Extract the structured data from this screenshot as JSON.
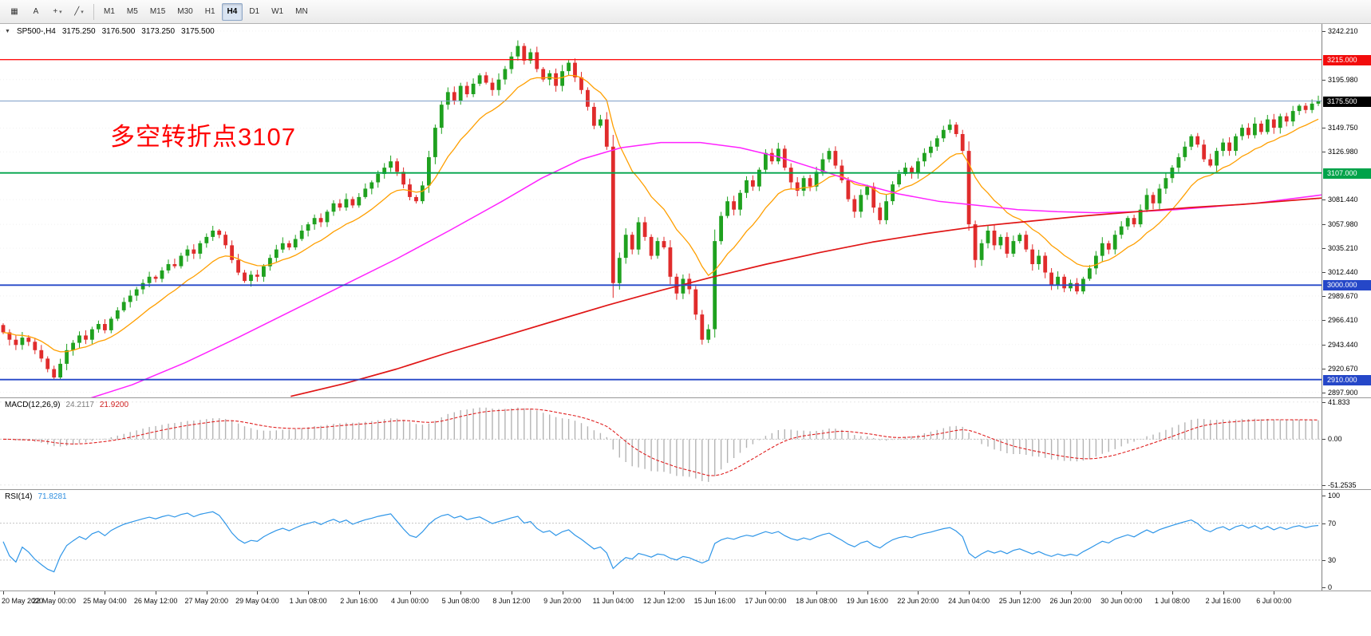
{
  "toolbar": {
    "icons": [
      {
        "name": "chart-window-icon",
        "glyph": "▦",
        "caret": false
      },
      {
        "name": "text-tool-icon",
        "glyph": "A",
        "caret": false
      },
      {
        "name": "cursor-tool-icon",
        "glyph": "+",
        "caret": true
      },
      {
        "name": "trendline-tool-icon",
        "glyph": "╱",
        "caret": true
      }
    ],
    "timeframes": [
      "M1",
      "M5",
      "M15",
      "M30",
      "H1",
      "H4",
      "D1",
      "W1",
      "MN"
    ],
    "active_timeframe": "H4"
  },
  "symbol_header": {
    "symbol": "SP500-,H4",
    "open": "3175.250",
    "high": "3176.500",
    "low": "3173.250",
    "close": "3175.500"
  },
  "annotation": {
    "text": "多空转折点3107",
    "color": "#ff0000",
    "value": 3107
  },
  "chart_data": {
    "type": "candlestick",
    "title": "SP500-,H4",
    "symbol": "SP500-",
    "timeframe": "H4",
    "xlabel": "",
    "ylabel": "price",
    "ylim": [
      2893,
      3249
    ],
    "first_open": 2962,
    "closes": [
      2955,
      2948,
      2943,
      2950,
      2946,
      2938,
      2930,
      2920,
      2912,
      2925,
      2938,
      2945,
      2952,
      2948,
      2958,
      2963,
      2957,
      2968,
      2976,
      2984,
      2990,
      2996,
      3002,
      3008,
      3006,
      3014,
      3020,
      3018,
      3028,
      3034,
      3030,
      3040,
      3046,
      3052,
      3048,
      3038,
      3024,
      3012,
      3004,
      3010,
      3008,
      3018,
      3026,
      3034,
      3040,
      3036,
      3044,
      3052,
      3058,
      3064,
      3060,
      3070,
      3078,
      3074,
      3082,
      3076,
      3084,
      3092,
      3098,
      3106,
      3112,
      3118,
      3108,
      3096,
      3084,
      3080,
      3095,
      3122,
      3150,
      3172,
      3184,
      3176,
      3190,
      3182,
      3192,
      3200,
      3193,
      3186,
      3196,
      3206,
      3218,
      3228,
      3214,
      3222,
      3206,
      3196,
      3202,
      3190,
      3204,
      3212,
      3198,
      3186,
      3170,
      3152,
      3158,
      3132,
      3002,
      3026,
      3048,
      3034,
      3060,
      3046,
      3028,
      3042,
      3036,
      3008,
      2992,
      3006,
      2996,
      2972,
      2948,
      2958,
      3042,
      3066,
      3080,
      3072,
      3088,
      3100,
      3094,
      3110,
      3126,
      3118,
      3130,
      3112,
      3098,
      3090,
      3102,
      3094,
      3108,
      3120,
      3128,
      3114,
      3100,
      3082,
      3070,
      3086,
      3094,
      3074,
      3062,
      3080,
      3096,
      3106,
      3112,
      3107,
      3118,
      3126,
      3132,
      3140,
      3148,
      3153,
      3144,
      3128,
      3058,
      3024,
      3040,
      3052,
      3038,
      3046,
      3030,
      3042,
      3048,
      3034,
      3020,
      3028,
      3012,
      3000,
      3008,
      2997,
      3002,
      2994,
      3006,
      3016,
      3028,
      3040,
      3034,
      3048,
      3056,
      3064,
      3058,
      3072,
      3086,
      3078,
      3092,
      3102,
      3112,
      3122,
      3132,
      3142,
      3134,
      3120,
      3114,
      3128,
      3136,
      3128,
      3142,
      3150,
      3143,
      3154,
      3146,
      3158,
      3150,
      3161,
      3156,
      3166,
      3171,
      3167,
      3173,
      3175.5
    ],
    "colors": {
      "bull": "#1fa11f",
      "bear": "#e02c2c"
    },
    "ma_fast": {
      "period": 13,
      "color": "#ff9f00"
    },
    "ma_mid": {
      "color": "#ff22ff",
      "points": [
        [
          0.06,
          2889
        ],
        [
          0.1,
          2905
        ],
        [
          0.14,
          2926
        ],
        [
          0.18,
          2950
        ],
        [
          0.22,
          2975
        ],
        [
          0.26,
          3000
        ],
        [
          0.3,
          3025
        ],
        [
          0.34,
          3052
        ],
        [
          0.38,
          3080
        ],
        [
          0.41,
          3102
        ],
        [
          0.44,
          3120
        ],
        [
          0.47,
          3131
        ],
        [
          0.5,
          3136
        ],
        [
          0.53,
          3136
        ],
        [
          0.56,
          3131
        ],
        [
          0.59,
          3122
        ],
        [
          0.62,
          3110
        ],
        [
          0.65,
          3097
        ],
        [
          0.68,
          3087
        ],
        [
          0.71,
          3080
        ],
        [
          0.74,
          3076
        ],
        [
          0.77,
          3072
        ],
        [
          0.8,
          3070
        ],
        [
          0.83,
          3069
        ],
        [
          0.86,
          3070
        ],
        [
          0.89,
          3072
        ],
        [
          0.92,
          3075
        ],
        [
          0.95,
          3078
        ],
        [
          1.0,
          3086
        ]
      ]
    },
    "ma_slow": {
      "color": "#e01616",
      "points": [
        [
          0.22,
          2894
        ],
        [
          0.26,
          2906
        ],
        [
          0.3,
          2920
        ],
        [
          0.34,
          2936
        ],
        [
          0.38,
          2951
        ],
        [
          0.42,
          2966
        ],
        [
          0.46,
          2981
        ],
        [
          0.5,
          2995
        ],
        [
          0.54,
          3008
        ],
        [
          0.58,
          3020
        ],
        [
          0.62,
          3031
        ],
        [
          0.66,
          3041
        ],
        [
          0.7,
          3049
        ],
        [
          0.74,
          3056
        ],
        [
          0.78,
          3061
        ],
        [
          0.82,
          3066
        ],
        [
          0.86,
          3070
        ],
        [
          0.9,
          3074
        ],
        [
          0.94,
          3077
        ],
        [
          1.0,
          3083
        ]
      ]
    },
    "levels": [
      {
        "price": 3215.0,
        "color": "#ff1212",
        "width": 1.3
      },
      {
        "price": 3175.5,
        "color": "#7a9cc6",
        "width": 1
      },
      {
        "price": 3107.0,
        "color": "#00a34a",
        "width": 1.8
      },
      {
        "price": 3000.0,
        "color": "#2547c8",
        "width": 1.8
      },
      {
        "price": 2910.0,
        "color": "#2547c8",
        "width": 1.8
      }
    ],
    "price_ticks": [
      "3242.210",
      "3195.980",
      "3149.750",
      "3126.980",
      "3081.440",
      "3057.980",
      "3035.210",
      "3012.440",
      "2989.670",
      "2966.410",
      "2943.440",
      "2920.670",
      "2897.900"
    ],
    "price_badges": [
      {
        "price": 3215.0,
        "label": "3215.000",
        "color": "#f20c0c"
      },
      {
        "price": 3175.5,
        "label": "3175.500",
        "color": "#000000"
      },
      {
        "price": 3107.0,
        "label": "3107.000",
        "color": "#00a34a"
      },
      {
        "price": 3000.0,
        "label": "3000.000",
        "color": "#2547c8"
      },
      {
        "price": 2910.0,
        "label": "2910.000",
        "color": "#2547c8"
      }
    ],
    "time_labels": [
      "20 May 2020",
      "22 May 00:00",
      "25 May 04:00",
      "26 May 12:00",
      "27 May 20:00",
      "29 May 04:00",
      "1 Jun 08:00",
      "2 Jun 16:00",
      "4 Jun 00:00",
      "5 Jun 08:00",
      "8 Jun 12:00",
      "9 Jun 20:00",
      "11 Jun 04:00",
      "12 Jun 12:00",
      "15 Jun 16:00",
      "17 Jun 00:00",
      "18 Jun 08:00",
      "19 Jun 16:00",
      "22 Jun 20:00",
      "24 Jun 04:00",
      "25 Jun 12:00",
      "26 Jun 20:00",
      "30 Jun 00:00",
      "1 Jul 08:00",
      "2 Jul 16:00",
      "6 Jul 00:00"
    ]
  },
  "macd": {
    "label": "MACD(12,26,9)",
    "value_main": "24.2117",
    "value_signal": "21.9200",
    "axis": [
      "41.833",
      "0.00",
      "-51.2535"
    ],
    "ylim": [
      -56,
      46
    ],
    "hist_color": "#b4b4b4",
    "signal_color": "#e02020"
  },
  "rsi": {
    "label": "RSI(14)",
    "value": "71.8281",
    "period": 14,
    "axis": [
      "100",
      "70",
      "30",
      "0"
    ],
    "levels": [
      70,
      30
    ],
    "ylim": [
      -3,
      106
    ],
    "color": "#2f96e8"
  }
}
